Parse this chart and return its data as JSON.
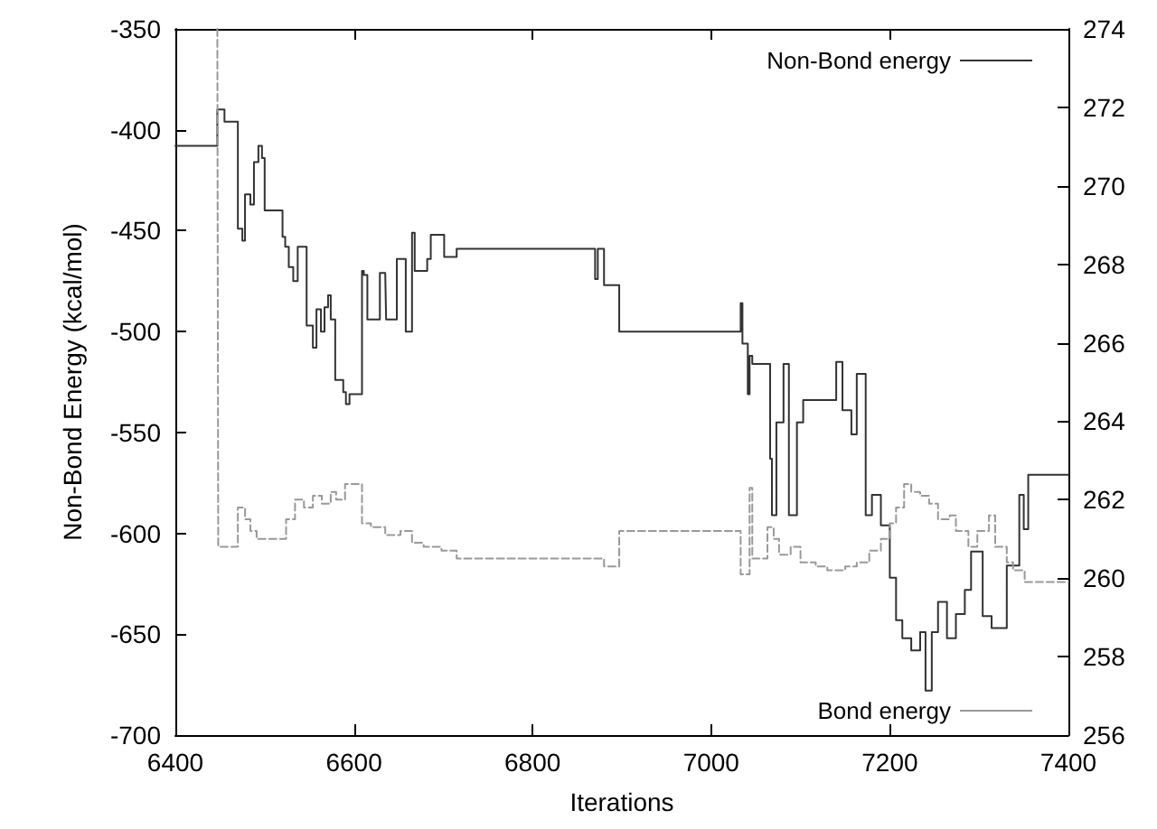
{
  "chart_data": {
    "type": "step",
    "xlabel": "Iterations",
    "ylabel": "Non-Bond Energy (kcal/mol)",
    "xlim": [
      6400,
      7400
    ],
    "xticks": [
      6400,
      6600,
      6800,
      7000,
      7200,
      7400
    ],
    "ylim": [
      -700,
      -350
    ],
    "yticks": [
      -700,
      -650,
      -600,
      -550,
      -500,
      -450,
      -400,
      -350
    ],
    "y2lim": [
      256,
      274
    ],
    "y2ticks": [
      256,
      258,
      260,
      262,
      264,
      266,
      268,
      270,
      272,
      274
    ],
    "grid": false,
    "legend": "right",
    "marker": "none",
    "series": [
      {
        "name": "Non-Bond energy",
        "color": "#333333",
        "line_style": "solid",
        "x": [
          6400,
          6447,
          6455,
          6470,
          6475,
          6478,
          6484,
          6488,
          6493,
          6497,
          6500,
          6520,
          6523,
          6527,
          6532,
          6537,
          6547,
          6554,
          6558,
          6563,
          6567,
          6571,
          6574,
          6579,
          6588,
          6591,
          6595,
          6598,
          6609,
          6611,
          6615,
          6627,
          6629,
          6635,
          6636,
          6648,
          6658,
          6665,
          6668,
          6678,
          6682,
          6686,
          6701,
          6715,
          6870,
          6873,
          6880,
          6883,
          6897,
          7033,
          7035,
          7041,
          7043,
          7046,
          7051,
          7066,
          7068,
          7073,
          7081,
          7087,
          7096,
          7103,
          7120,
          7140,
          7147,
          7157,
          7163,
          7173,
          7180,
          7190,
          7200,
          7207,
          7214,
          7224,
          7234,
          7240,
          7247,
          7254,
          7264,
          7274,
          7284,
          7291,
          7304,
          7314,
          7331,
          7345,
          7350,
          7355,
          7400
        ],
        "values": [
          -408,
          -390,
          -396,
          -449,
          -455,
          -432,
          -437,
          -416,
          -408,
          -414,
          -440,
          -453,
          -458,
          -468,
          -475,
          -458,
          -497,
          -508,
          -489,
          -500,
          -488,
          -482,
          -494,
          -524,
          -530,
          -536,
          -531,
          -531,
          -470,
          -472,
          -494,
          -494,
          -471,
          -471,
          -494,
          -464,
          -500,
          -451,
          -470,
          -470,
          -464,
          -452,
          -463,
          -459,
          -474,
          -459,
          -477,
          -477,
          -500,
          -486,
          -506,
          -531,
          -512,
          -516,
          -516,
          -563,
          -591,
          -545,
          -516,
          -591,
          -545,
          -534,
          -534,
          -515,
          -539,
          -551,
          -521,
          -591,
          -581,
          -596,
          -622,
          -643,
          -652,
          -658,
          -649,
          -678,
          -649,
          -634,
          -652,
          -640,
          -628,
          -609,
          -641,
          -647,
          -616,
          -581,
          -598,
          -571,
          -571
        ]
      },
      {
        "name": "Bond energy",
        "color": "#999999",
        "line_style": "dashed",
        "axis": "y2",
        "x": [
          6447,
          6448,
          6470,
          6478,
          6484,
          6491,
          6521,
          6524,
          6534,
          6544,
          6554,
          6564,
          6574,
          6580,
          6590,
          6605,
          6609,
          6619,
          6635,
          6652,
          6665,
          6678,
          6698,
          6715,
          6880,
          6897,
          7033,
          7043,
          7046,
          7063,
          7070,
          7076,
          7089,
          7100,
          7117,
          7130,
          7150,
          7163,
          7177,
          7190,
          7200,
          7207,
          7216,
          7224,
          7234,
          7244,
          7254,
          7267,
          7274,
          7288,
          7298,
          7311,
          7318,
          7331,
          7338,
          7351,
          7400
        ],
        "values": [
          274,
          260.8,
          261.8,
          261.5,
          261.2,
          261.0,
          261.0,
          261.5,
          262.0,
          261.8,
          262.1,
          261.9,
          262.2,
          262.0,
          262.4,
          262.4,
          261.4,
          261.3,
          261.1,
          261.2,
          260.9,
          260.8,
          260.7,
          260.5,
          260.3,
          261.2,
          260.1,
          262.3,
          260.5,
          261.3,
          261.0,
          260.6,
          260.8,
          260.4,
          260.3,
          260.2,
          260.3,
          260.4,
          260.7,
          261.0,
          261.4,
          261.8,
          262.4,
          262.2,
          262.1,
          261.9,
          261.5,
          261.6,
          261.2,
          260.8,
          261.2,
          261.6,
          260.8,
          260.4,
          260.2,
          259.9,
          259.9
        ]
      }
    ]
  }
}
